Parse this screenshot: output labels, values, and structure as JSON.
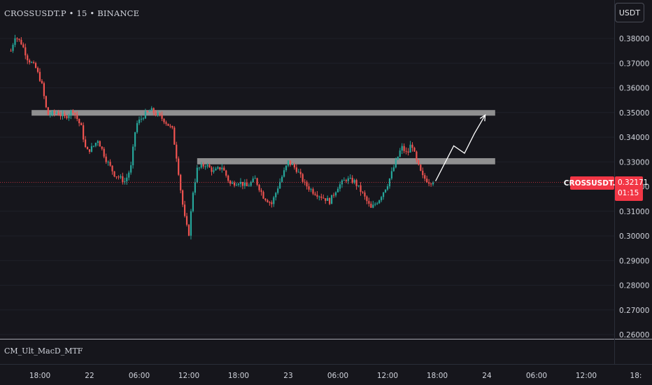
{
  "header": {
    "symbol_title": "CROSSUSDT.P • 15 • BINANCE",
    "currency_button": "USDT"
  },
  "price_tag": {
    "symbol": "CROSSUSDT.P",
    "price": "0.32171",
    "countdown": "01:15",
    "color": "#f23645"
  },
  "indicator": {
    "name": "CM_Ult_MacD_MTF"
  },
  "colors": {
    "background": "#16161c",
    "bull": "#26a69a",
    "bear": "#ef5350",
    "zone": "#9a9a9a",
    "projection": "#ffffff"
  },
  "chart_data": {
    "type": "candlestick",
    "y_axis_ticks": [
      "0.38000",
      "0.37000",
      "0.36000",
      "0.35000",
      "0.34000",
      "0.33000",
      "0.32000",
      "0.31000",
      "0.30000",
      "0.29000",
      "0.28000",
      "0.27000",
      "0.26000"
    ],
    "y_range": [
      0.26,
      0.385
    ],
    "x_axis_ticks": [
      "18:00",
      "22",
      "06:00",
      "12:00",
      "18:00",
      "23",
      "06:00",
      "12:00",
      "18:00",
      "24",
      "06:00",
      "12:00",
      "18:"
    ],
    "x_axis_hours_from_start": [
      0,
      6,
      12,
      18,
      24,
      30,
      36,
      42,
      48,
      54,
      60,
      66,
      72
    ],
    "candle_interval_minutes": 15,
    "price_path_keypoints": [
      {
        "h": -3.5,
        "p": 0.375
      },
      {
        "h": -3.0,
        "p": 0.381
      },
      {
        "h": -2.2,
        "p": 0.378
      },
      {
        "h": -1.5,
        "p": 0.372
      },
      {
        "h": -0.5,
        "p": 0.368
      },
      {
        "h": 0.2,
        "p": 0.362
      },
      {
        "h": 0.9,
        "p": 0.349
      },
      {
        "h": 2.0,
        "p": 0.35
      },
      {
        "h": 3.0,
        "p": 0.348
      },
      {
        "h": 4.0,
        "p": 0.351
      },
      {
        "h": 5.0,
        "p": 0.344
      },
      {
        "h": 5.6,
        "p": 0.334
      },
      {
        "h": 6.4,
        "p": 0.336
      },
      {
        "h": 7.0,
        "p": 0.339
      },
      {
        "h": 8.0,
        "p": 0.331
      },
      {
        "h": 9.0,
        "p": 0.325
      },
      {
        "h": 10.3,
        "p": 0.322
      },
      {
        "h": 11.0,
        "p": 0.328
      },
      {
        "h": 11.6,
        "p": 0.345
      },
      {
        "h": 12.6,
        "p": 0.349
      },
      {
        "h": 13.4,
        "p": 0.351
      },
      {
        "h": 14.2,
        "p": 0.349
      },
      {
        "h": 15.0,
        "p": 0.347
      },
      {
        "h": 16.0,
        "p": 0.343
      },
      {
        "h": 16.6,
        "p": 0.33
      },
      {
        "h": 17.1,
        "p": 0.316
      },
      {
        "h": 17.6,
        "p": 0.305
      },
      {
        "h": 18.0,
        "p": 0.301
      },
      {
        "h": 18.5,
        "p": 0.318
      },
      {
        "h": 19.0,
        "p": 0.327
      },
      {
        "h": 20.0,
        "p": 0.329
      },
      {
        "h": 21.0,
        "p": 0.326
      },
      {
        "h": 22.0,
        "p": 0.328
      },
      {
        "h": 23.0,
        "p": 0.321
      },
      {
        "h": 24.0,
        "p": 0.322
      },
      {
        "h": 25.0,
        "p": 0.32
      },
      {
        "h": 26.0,
        "p": 0.323
      },
      {
        "h": 27.0,
        "p": 0.316
      },
      {
        "h": 28.0,
        "p": 0.313
      },
      {
        "h": 29.0,
        "p": 0.322
      },
      {
        "h": 30.0,
        "p": 0.33
      },
      {
        "h": 31.0,
        "p": 0.327
      },
      {
        "h": 32.0,
        "p": 0.321
      },
      {
        "h": 33.0,
        "p": 0.318
      },
      {
        "h": 34.0,
        "p": 0.316
      },
      {
        "h": 35.0,
        "p": 0.314
      },
      {
        "h": 36.0,
        "p": 0.32
      },
      {
        "h": 37.0,
        "p": 0.323
      },
      {
        "h": 38.0,
        "p": 0.322
      },
      {
        "h": 39.0,
        "p": 0.317
      },
      {
        "h": 40.0,
        "p": 0.311
      },
      {
        "h": 41.0,
        "p": 0.315
      },
      {
        "h": 42.0,
        "p": 0.321
      },
      {
        "h": 43.0,
        "p": 0.33
      },
      {
        "h": 43.7,
        "p": 0.336
      },
      {
        "h": 44.4,
        "p": 0.333
      },
      {
        "h": 44.9,
        "p": 0.338
      },
      {
        "h": 45.4,
        "p": 0.331
      },
      {
        "h": 46.2,
        "p": 0.324
      },
      {
        "h": 47.0,
        "p": 0.322
      },
      {
        "h": 47.6,
        "p": 0.322
      }
    ],
    "support_resistance_zones": [
      {
        "from_hours": -1.0,
        "to_hours": 55.0,
        "price_low": 0.349,
        "price_high": 0.351
      },
      {
        "from_hours": 19.0,
        "to_hours": 55.0,
        "price_low": 0.329,
        "price_high": 0.3315
      }
    ],
    "projection_path": [
      {
        "h": 47.8,
        "p": 0.3222
      },
      {
        "h": 50.0,
        "p": 0.3365
      },
      {
        "h": 51.3,
        "p": 0.3335
      },
      {
        "h": 52.5,
        "p": 0.3415
      },
      {
        "h": 53.8,
        "p": 0.349
      }
    ],
    "current_price": 0.32171
  }
}
